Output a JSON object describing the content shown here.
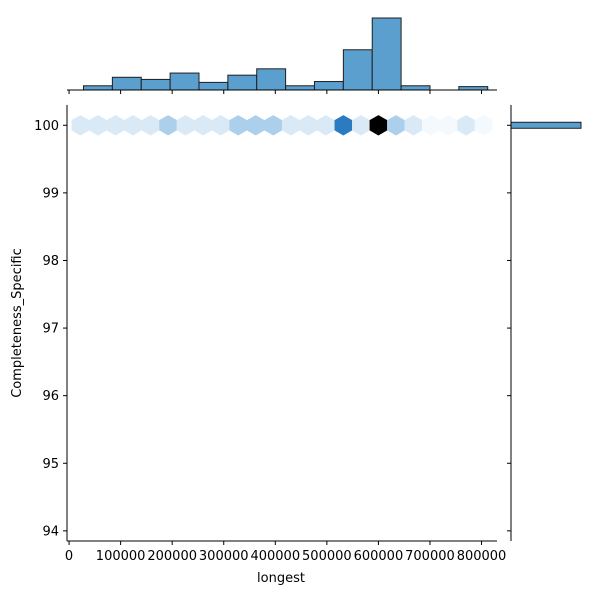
{
  "chart_data": {
    "type": "jointplot-hexbin",
    "xlabel": "longest",
    "ylabel": "Completeness_Specific",
    "x_ticks": [
      0,
      100000,
      200000,
      300000,
      400000,
      500000,
      600000,
      700000,
      800000
    ],
    "x_tick_labels": [
      "0",
      "100000",
      "200000",
      "300000",
      "400000",
      "500000",
      "600000",
      "700000",
      "800000"
    ],
    "y_ticks": [
      94,
      95,
      96,
      97,
      98,
      99,
      100
    ],
    "y_tick_labels": [
      "94",
      "95",
      "96",
      "97",
      "98",
      "99",
      "100"
    ],
    "xlim": [
      -4000,
      830000
    ],
    "ylim": [
      93.85,
      100.3
    ],
    "hexbin": {
      "y": 100,
      "x": [
        22000,
        56000,
        90000,
        124000,
        158000,
        192000,
        226000,
        260000,
        294000,
        328000,
        362000,
        396000,
        430000,
        464000,
        498000,
        532000,
        566000,
        600000,
        634000,
        668000,
        702000,
        736000,
        770000,
        804000
      ],
      "counts": [
        1,
        1,
        2,
        2,
        1,
        4,
        2,
        2,
        1,
        3,
        3,
        4,
        1,
        1,
        2,
        8,
        2,
        12,
        3,
        1,
        0,
        0,
        1,
        0.5
      ],
      "color_scale": [
        "#f4f9fe",
        "#d9e9f6",
        "#acd0ec",
        "#5b9fd3",
        "#2a7bbf",
        "#000000"
      ]
    },
    "marginal_x": {
      "bin_edges": [
        28000,
        84000,
        140000,
        196000,
        252000,
        308000,
        364000,
        420000,
        476000,
        532000,
        588000,
        644000,
        700000,
        756000,
        812000
      ],
      "counts": [
        1,
        3,
        2.5,
        4,
        1.8,
        3.5,
        5,
        1,
        2,
        9.5,
        17,
        1,
        0,
        0.8
      ]
    },
    "marginal_y": {
      "bin_value": 100,
      "count": 1
    },
    "colors": {
      "bar_fill": "#5b9fcf",
      "bar_edge": "#1f1f1f",
      "axis": "#000000"
    }
  }
}
